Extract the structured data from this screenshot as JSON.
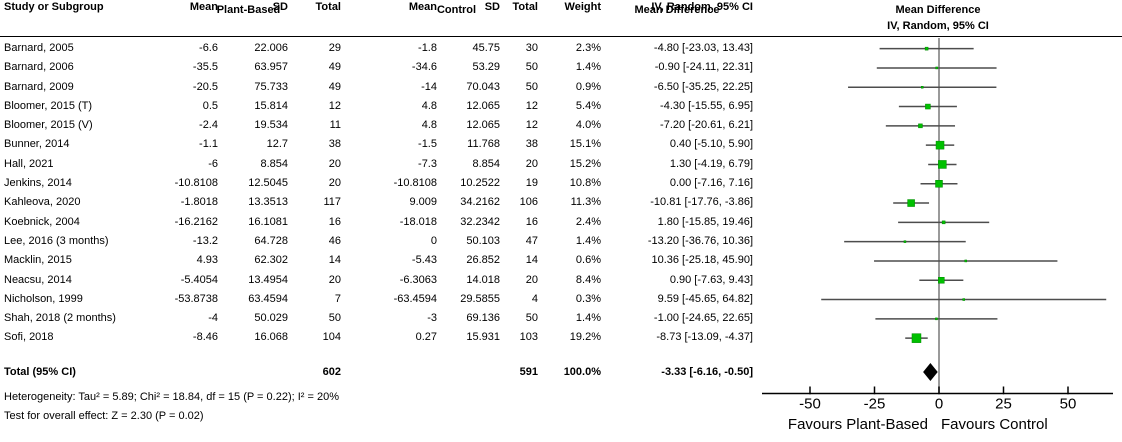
{
  "header": {
    "group_plant": "Plant-Based",
    "group_control": "Control",
    "col_study": "Study or Subgroup",
    "col_mean": "Mean",
    "col_sd": "SD",
    "col_total": "Total",
    "col_weight": "Weight",
    "md_title": "Mean Difference",
    "md_sub": "IV, Random, 95% CI"
  },
  "footer": {
    "heterogeneity": "Heterogeneity: Tau² = 5.89; Chi² = 18.84, df = 15 (P = 0.22); I² = 20%",
    "overall_effect": "Test for overall effect: Z = 2.30 (P = 0.02)"
  },
  "colors": {
    "square_fill": "#00c000",
    "square_edge": "#008a00",
    "ci_line": "#4d4d4d",
    "zero_line": "#808080",
    "axis_line": "#000000",
    "diamond": "#000000"
  },
  "chart_data": {
    "type": "forest",
    "effect_measure": "Mean Difference, IV, Random, 95% CI",
    "studies": [
      {
        "name": "Barnard, 2005",
        "p_mean": "-6.6",
        "p_sd": "22.006",
        "p_total": "29",
        "c_mean": "-1.8",
        "c_sd": "45.75",
        "c_total": "30",
        "weight": "2.3%",
        "md_label": "-4.80 [-23.03, 13.43]",
        "md": -4.8,
        "lo": -23.03,
        "hi": 13.43,
        "w": 2.3
      },
      {
        "name": "Barnard, 2006",
        "p_mean": "-35.5",
        "p_sd": "63.957",
        "p_total": "49",
        "c_mean": "-34.6",
        "c_sd": "53.29",
        "c_total": "50",
        "weight": "1.4%",
        "md_label": "-0.90 [-24.11, 22.31]",
        "md": -0.9,
        "lo": -24.11,
        "hi": 22.31,
        "w": 1.4
      },
      {
        "name": "Barnard, 2009",
        "p_mean": "-20.5",
        "p_sd": "75.733",
        "p_total": "49",
        "c_mean": "-14",
        "c_sd": "70.043",
        "c_total": "50",
        "weight": "0.9%",
        "md_label": "-6.50 [-35.25, 22.25]",
        "md": -6.5,
        "lo": -35.25,
        "hi": 22.25,
        "w": 0.9
      },
      {
        "name": "Bloomer, 2015 (T)",
        "p_mean": "0.5",
        "p_sd": "15.814",
        "p_total": "12",
        "c_mean": "4.8",
        "c_sd": "12.065",
        "c_total": "12",
        "weight": "5.4%",
        "md_label": "-4.30 [-15.55, 6.95]",
        "md": -4.3,
        "lo": -15.55,
        "hi": 6.95,
        "w": 5.4
      },
      {
        "name": "Bloomer, 2015 (V)",
        "p_mean": "-2.4",
        "p_sd": "19.534",
        "p_total": "11",
        "c_mean": "4.8",
        "c_sd": "12.065",
        "c_total": "12",
        "weight": "4.0%",
        "md_label": "-7.20 [-20.61, 6.21]",
        "md": -7.2,
        "lo": -20.61,
        "hi": 6.21,
        "w": 4.0
      },
      {
        "name": "Bunner, 2014",
        "p_mean": "-1.1",
        "p_sd": "12.7",
        "p_total": "38",
        "c_mean": "-1.5",
        "c_sd": "11.768",
        "c_total": "38",
        "weight": "15.1%",
        "md_label": "0.40 [-5.10, 5.90]",
        "md": 0.4,
        "lo": -5.1,
        "hi": 5.9,
        "w": 15.1
      },
      {
        "name": "Hall, 2021",
        "p_mean": "-6",
        "p_sd": "8.854",
        "p_total": "20",
        "c_mean": "-7.3",
        "c_sd": "8.854",
        "c_total": "20",
        "weight": "15.2%",
        "md_label": "1.30 [-4.19, 6.79]",
        "md": 1.3,
        "lo": -4.19,
        "hi": 6.79,
        "w": 15.2
      },
      {
        "name": "Jenkins, 2014",
        "p_mean": "-10.8108",
        "p_sd": "12.5045",
        "p_total": "20",
        "c_mean": "-10.8108",
        "c_sd": "10.2522",
        "c_total": "19",
        "weight": "10.8%",
        "md_label": "0.00 [-7.16, 7.16]",
        "md": 0.0,
        "lo": -7.16,
        "hi": 7.16,
        "w": 10.8
      },
      {
        "name": "Kahleova, 2020",
        "p_mean": "-1.8018",
        "p_sd": "13.3513",
        "p_total": "117",
        "c_mean": "9.009",
        "c_sd": "34.2162",
        "c_total": "106",
        "weight": "11.3%",
        "md_label": "-10.81 [-17.76, -3.86]",
        "md": -10.81,
        "lo": -17.76,
        "hi": -3.86,
        "w": 11.3
      },
      {
        "name": "Koebnick, 2004",
        "p_mean": "-16.2162",
        "p_sd": "16.1081",
        "p_total": "16",
        "c_mean": "-18.018",
        "c_sd": "32.2342",
        "c_total": "16",
        "weight": "2.4%",
        "md_label": "1.80 [-15.85, 19.46]",
        "md": 1.8,
        "lo": -15.85,
        "hi": 19.46,
        "w": 2.4
      },
      {
        "name": "Lee, 2016 (3 months)",
        "p_mean": "-13.2",
        "p_sd": "64.728",
        "p_total": "46",
        "c_mean": "0",
        "c_sd": "50.103",
        "c_total": "47",
        "weight": "1.4%",
        "md_label": "-13.20 [-36.76, 10.36]",
        "md": -13.2,
        "lo": -36.76,
        "hi": 10.36,
        "w": 1.4
      },
      {
        "name": "Macklin, 2015",
        "p_mean": "4.93",
        "p_sd": "62.302",
        "p_total": "14",
        "c_mean": "-5.43",
        "c_sd": "26.852",
        "c_total": "14",
        "weight": "0.6%",
        "md_label": "10.36 [-25.18, 45.90]",
        "md": 10.36,
        "lo": -25.18,
        "hi": 45.9,
        "w": 0.6
      },
      {
        "name": "Neacsu, 2014",
        "p_mean": "-5.4054",
        "p_sd": "13.4954",
        "p_total": "20",
        "c_mean": "-6.3063",
        "c_sd": "14.018",
        "c_total": "20",
        "weight": "8.4%",
        "md_label": "0.90 [-7.63, 9.43]",
        "md": 0.9,
        "lo": -7.63,
        "hi": 9.43,
        "w": 8.4
      },
      {
        "name": "Nicholson, 1999",
        "p_mean": "-53.8738",
        "p_sd": "63.4594",
        "p_total": "7",
        "c_mean": "-63.4594",
        "c_sd": "29.5855",
        "c_total": "4",
        "weight": "0.3%",
        "md_label": "9.59 [-45.65, 64.82]",
        "md": 9.59,
        "lo": -45.65,
        "hi": 64.82,
        "w": 0.3
      },
      {
        "name": "Shah, 2018 (2 months)",
        "p_mean": "-4",
        "p_sd": "50.029",
        "p_total": "50",
        "c_mean": "-3",
        "c_sd": "69.136",
        "c_total": "50",
        "weight": "1.4%",
        "md_label": "-1.00 [-24.65, 22.65]",
        "md": -1.0,
        "lo": -24.65,
        "hi": 22.65,
        "w": 1.4
      },
      {
        "name": "Sofi, 2018",
        "p_mean": "-8.46",
        "p_sd": "16.068",
        "p_total": "104",
        "c_mean": "0.27",
        "c_sd": "15.931",
        "c_total": "103",
        "weight": "19.2%",
        "md_label": "-8.73 [-13.09, -4.37]",
        "md": -8.73,
        "lo": -13.09,
        "hi": -4.37,
        "w": 19.2
      }
    ],
    "total": {
      "label": "Total (95% CI)",
      "p_total": "602",
      "c_total": "591",
      "weight": "100.0%",
      "md_label": "-3.33 [-6.16, -0.50]",
      "md": -3.33,
      "lo": -6.16,
      "hi": -0.5
    },
    "axis": {
      "ticks": [
        -50,
        -25,
        0,
        25,
        50
      ],
      "tick_labels": [
        "-50",
        "-25",
        "0",
        "25",
        "50"
      ],
      "xlim": [
        -68,
        68
      ],
      "favours_left": "Favours Plant-Based",
      "favours_right": "Favours Control"
    }
  }
}
